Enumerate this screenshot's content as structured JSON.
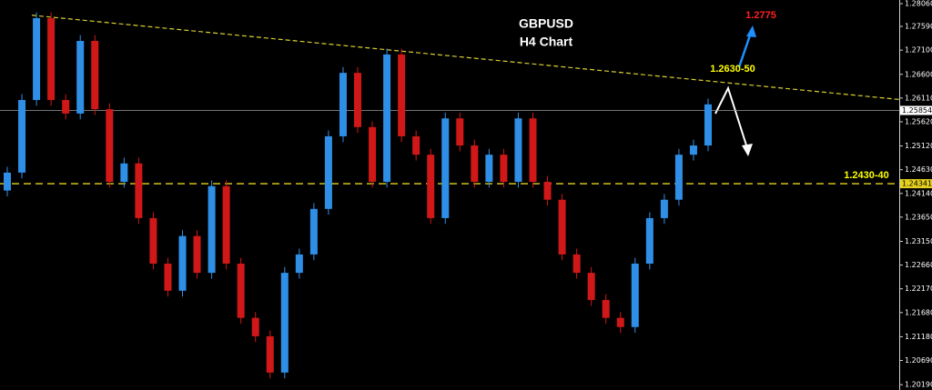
{
  "chart_data": {
    "type": "candlestick",
    "title": "GBPUSD",
    "subtitle": "H4 Chart",
    "up_color": "#2f8fe6",
    "down_color": "#d01818",
    "open": [
      1.242,
      1.2457,
      1.2607,
      1.2776,
      1.2607,
      1.2579,
      1.2729,
      1.2588,
      1.2438,
      1.2476,
      1.2363,
      1.2269,
      1.2213,
      1.2326,
      1.225,
      1.2429,
      1.2269,
      1.2157,
      1.2119,
      1.2044,
      1.225,
      1.2288,
      1.2382,
      1.2532,
      1.2663,
      1.2551,
      1.2438,
      1.2701,
      1.2532,
      1.2494,
      1.2363,
      1.2569,
      1.2513,
      1.2438,
      1.2494,
      1.2438,
      1.2569,
      1.2438,
      1.2401,
      1.2288,
      1.225,
      1.2194,
      1.2157,
      1.2138,
      1.2269,
      1.2363,
      1.2401,
      1.2494,
      1.2513
    ],
    "high": [
      1.2469,
      1.2619,
      1.2788,
      1.2788,
      1.2619,
      1.2741,
      1.2741,
      1.26,
      1.2488,
      1.2488,
      1.2375,
      1.2281,
      1.2338,
      1.2338,
      1.2441,
      1.2441,
      1.2281,
      1.2169,
      1.2131,
      1.2262,
      1.23,
      1.2394,
      1.2544,
      1.2675,
      1.2675,
      1.2563,
      1.2713,
      1.2713,
      1.2544,
      1.2506,
      1.2581,
      1.2581,
      1.2525,
      1.2506,
      1.2506,
      1.2581,
      1.2581,
      1.245,
      1.2413,
      1.23,
      1.2262,
      1.2206,
      1.2169,
      1.2281,
      1.2375,
      1.2413,
      1.2506,
      1.2525,
      1.261
    ],
    "low": [
      1.2408,
      1.2445,
      1.2595,
      1.2595,
      1.2567,
      1.2567,
      1.2576,
      1.2426,
      1.2426,
      1.2351,
      1.2257,
      1.2201,
      1.2201,
      1.2238,
      1.2238,
      1.2257,
      1.2145,
      1.2107,
      1.2032,
      1.2032,
      1.2238,
      1.2276,
      1.237,
      1.252,
      1.2539,
      1.2426,
      1.2426,
      1.252,
      1.2482,
      1.2351,
      1.2351,
      1.2501,
      1.2426,
      1.2426,
      1.2426,
      1.2426,
      1.2426,
      1.2389,
      1.2276,
      1.2238,
      1.2182,
      1.2145,
      1.2126,
      1.2126,
      1.2257,
      1.2351,
      1.2389,
      1.2482,
      1.2501
    ],
    "close": [
      1.2457,
      1.2607,
      1.2776,
      1.2607,
      1.2579,
      1.2729,
      1.2588,
      1.2438,
      1.2476,
      1.2363,
      1.2269,
      1.2213,
      1.2326,
      1.225,
      1.2429,
      1.2269,
      1.2157,
      1.2119,
      1.2044,
      1.225,
      1.2288,
      1.2382,
      1.2532,
      1.2663,
      1.2551,
      1.2438,
      1.2701,
      1.2532,
      1.2494,
      1.2363,
      1.2569,
      1.2513,
      1.2438,
      1.2494,
      1.2438,
      1.2569,
      1.2438,
      1.2401,
      1.2288,
      1.225,
      1.2194,
      1.2157,
      1.2138,
      1.2269,
      1.2363,
      1.2401,
      1.2494,
      1.2513,
      1.2598
    ],
    "ylim": [
      1.2008,
      1.28135
    ],
    "yticks": [
      {
        "value": 1.2806,
        "label": "1.28060"
      },
      {
        "value": 1.2759,
        "label": "1.27590"
      },
      {
        "value": 1.271,
        "label": "1.27100"
      },
      {
        "value": 1.266,
        "label": "1.26600"
      },
      {
        "value": 1.2611,
        "label": "1.26110"
      },
      {
        "value": 1.2562,
        "label": "1.25620"
      },
      {
        "value": 1.2512,
        "label": "1.25120"
      },
      {
        "value": 1.2463,
        "label": "1.24630"
      },
      {
        "value": 1.2414,
        "label": "1.24140"
      },
      {
        "value": 1.2365,
        "label": "1.23650"
      },
      {
        "value": 1.2315,
        "label": "1.23150"
      },
      {
        "value": 1.2266,
        "label": "1.22660"
      },
      {
        "value": 1.2217,
        "label": "1.22170"
      },
      {
        "value": 1.2168,
        "label": "1.21680"
      },
      {
        "value": 1.2118,
        "label": "1.21180"
      },
      {
        "value": 1.2069,
        "label": "1.20690"
      },
      {
        "value": 1.2019,
        "label": "1.20190"
      }
    ],
    "hlines": [
      {
        "value": 1.25854,
        "label": "1.25854",
        "color": "#9a9a9a",
        "dashed": false
      },
      {
        "value": 1.24341,
        "label": "1.24341",
        "color": "#e6d21e",
        "dashed": true
      }
    ],
    "trendline": {
      "start": 1.2782,
      "end": 1.2608,
      "color": "#d8d030"
    },
    "annotations": [
      {
        "text": "1.2775",
        "color": "#ff2020"
      },
      {
        "text": "1.2630-50",
        "color": "#ffff00"
      },
      {
        "text": "1.2430-40",
        "color": "#ffff00"
      }
    ]
  }
}
